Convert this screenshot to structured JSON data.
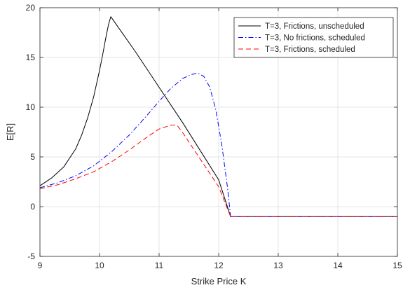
{
  "chart_data": {
    "type": "line",
    "xlabel": "Strike Price K",
    "ylabel": "E[R]",
    "xlim": [
      9,
      15
    ],
    "ylim": [
      -5,
      20
    ],
    "x_ticks": [
      9,
      10,
      11,
      12,
      13,
      14,
      15
    ],
    "y_ticks": [
      -5,
      0,
      5,
      10,
      15,
      20
    ],
    "grid": true,
    "legend_position": "top-right",
    "series": [
      {
        "name": "T=3, Frictions, unscheduled",
        "color": "#000000",
        "style": "solid",
        "x": [
          9.0,
          9.2,
          9.4,
          9.6,
          9.7,
          9.8,
          9.9,
          10.0,
          10.05,
          10.1,
          10.15,
          10.19,
          10.4,
          10.6,
          10.8,
          11.0,
          11.2,
          11.4,
          11.6,
          11.8,
          12.0,
          12.2,
          12.5,
          13.0,
          13.5,
          14.0,
          14.5,
          15.0
        ],
        "y": [
          2.1,
          2.9,
          4.0,
          5.8,
          7.2,
          8.9,
          11.0,
          13.7,
          15.2,
          16.8,
          18.3,
          19.1,
          17.3,
          15.6,
          13.8,
          12.0,
          10.2,
          8.4,
          6.5,
          4.6,
          2.7,
          -1.0,
          -1.0,
          -1.0,
          -1.0,
          -1.0,
          -1.0,
          -1.0
        ]
      },
      {
        "name": "T=3, No frictions, scheduled",
        "color": "#0000ff",
        "style": "dashdot",
        "x": [
          9.0,
          9.3,
          9.6,
          9.9,
          10.2,
          10.5,
          10.8,
          11.0,
          11.2,
          11.4,
          11.55,
          11.65,
          11.75,
          11.85,
          11.95,
          12.05,
          12.15,
          12.2,
          12.5,
          13.0,
          13.5,
          14.0,
          14.5,
          15.0
        ],
        "y": [
          1.9,
          2.4,
          3.1,
          4.1,
          5.5,
          7.2,
          9.2,
          10.6,
          11.9,
          12.9,
          13.3,
          13.4,
          13.1,
          12.0,
          9.8,
          6.3,
          1.8,
          -1.0,
          -1.0,
          -1.0,
          -1.0,
          -1.0,
          -1.0,
          -1.0
        ]
      },
      {
        "name": "T=3, Frictions, scheduled",
        "color": "#ff0000",
        "style": "dashed",
        "x": [
          9.0,
          9.3,
          9.6,
          9.9,
          10.2,
          10.5,
          10.8,
          11.0,
          11.2,
          11.3,
          11.4,
          11.6,
          11.8,
          12.0,
          12.2,
          12.5,
          13.0,
          13.5,
          14.0,
          14.5,
          15.0
        ],
        "y": [
          1.8,
          2.2,
          2.8,
          3.5,
          4.5,
          5.7,
          7.0,
          7.8,
          8.2,
          8.2,
          7.4,
          5.6,
          3.8,
          2.0,
          -1.0,
          -1.0,
          -1.0,
          -1.0,
          -1.0,
          -1.0,
          -1.0
        ]
      }
    ]
  }
}
